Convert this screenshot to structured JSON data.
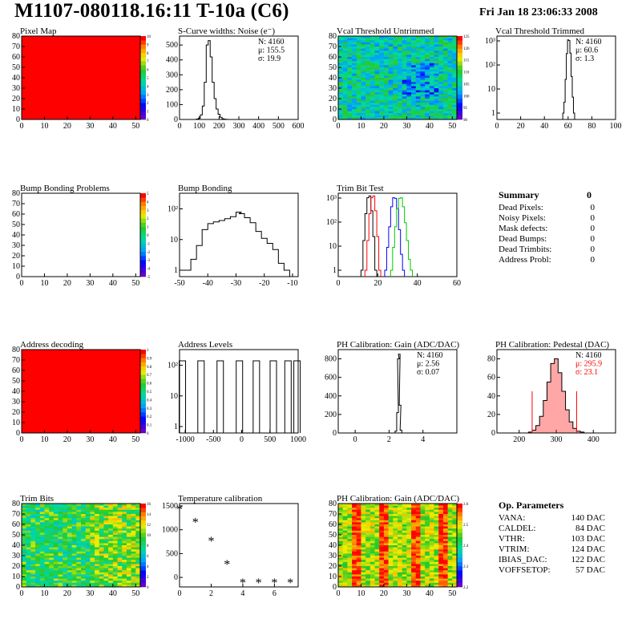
{
  "header": {
    "title": "M1107-080118.16:11 T-10a (C6)",
    "date": "Fri Jan 18 23:06:33 2008"
  },
  "colors": {
    "red": "#ff0000",
    "green": "#00cc00",
    "blue": "#0000ff",
    "pedestal_fill": "#ff0000"
  },
  "chart_data": [
    {
      "id": "pixel_map",
      "type": "heatmap",
      "title": "Pixel Map",
      "xlim": [
        0,
        52
      ],
      "ylim": [
        0,
        80
      ],
      "xticks": [
        0,
        10,
        20,
        30,
        40,
        50
      ],
      "yticks": [
        0,
        10,
        20,
        30,
        40,
        50,
        60,
        70,
        80
      ],
      "fill": "uniform-red",
      "colorbar_ticks": [
        "0",
        "1",
        "2",
        "3",
        "4",
        "5",
        "6",
        "7",
        "8",
        "9",
        "10"
      ]
    },
    {
      "id": "scurve",
      "type": "histogram",
      "title": "S-Curve widths: Noise (e⁻)",
      "xlim": [
        0,
        600
      ],
      "ylim": [
        0,
        560
      ],
      "xticks": [
        0,
        100,
        200,
        300,
        400,
        500,
        600
      ],
      "yticks": [
        0,
        100,
        200,
        300,
        400,
        500
      ],
      "stats": [
        "N: 4160",
        "μ: 155.5",
        "σ: 19.9"
      ],
      "x": [
        80,
        90,
        100,
        110,
        120,
        130,
        140,
        150,
        160,
        170,
        180,
        190,
        200,
        210,
        220,
        230,
        240,
        250
      ],
      "y": [
        0,
        3,
        8,
        30,
        90,
        250,
        500,
        530,
        420,
        250,
        140,
        70,
        35,
        15,
        5,
        2,
        1,
        0
      ]
    },
    {
      "id": "vcal_untrimmed",
      "type": "heatmap",
      "title": "Vcal Threshold Untrimmed",
      "xlim": [
        0,
        52
      ],
      "ylim": [
        0,
        80
      ],
      "xticks": [
        0,
        10,
        20,
        30,
        40,
        50
      ],
      "yticks": [
        0,
        10,
        20,
        30,
        40,
        50,
        60,
        70,
        80
      ],
      "colorbar_ticks": [
        "90",
        "95",
        "100",
        "105",
        "110",
        "115",
        "120",
        "125"
      ],
      "fill": "noise-green-cyan"
    },
    {
      "id": "vcal_trimmed",
      "type": "histogram",
      "title": "Vcal Threshold Trimmed",
      "log_y": true,
      "xlim": [
        0,
        100
      ],
      "xticks": [
        0,
        20,
        40,
        60,
        80,
        100
      ],
      "yticks_labels": [
        "1",
        "10",
        "10²",
        "10³"
      ],
      "stats": [
        "N: 4160",
        "μ: 60.6",
        "σ: 1.3"
      ],
      "x": [
        56,
        57,
        58,
        59,
        60,
        61,
        62,
        63,
        64,
        65
      ],
      "y": [
        1,
        3,
        30,
        400,
        1600,
        1500,
        420,
        40,
        5,
        1
      ]
    },
    {
      "id": "bump_problems",
      "type": "heatmap",
      "title": "Bump Bonding Problems",
      "xlim": [
        0,
        52
      ],
      "ylim": [
        0,
        80
      ],
      "xticks": [
        0,
        10,
        20,
        30,
        40,
        50
      ],
      "yticks": [
        0,
        10,
        20,
        30,
        40,
        50,
        60,
        70,
        80
      ],
      "colorbar_ticks": [
        "-5",
        "-4",
        "-3",
        "-2",
        "-1",
        "0",
        "1",
        "2",
        "3",
        "4",
        "5"
      ],
      "fill": "empty"
    },
    {
      "id": "bump_bonding",
      "type": "histogram",
      "title": "Bump Bonding",
      "log_y": true,
      "xlim": [
        -50,
        -8
      ],
      "xticks": [
        -50,
        -40,
        -30,
        -20,
        -10
      ],
      "yticks_labels": [
        "1",
        "10",
        "10²"
      ],
      "x": [
        -49,
        -47,
        -45,
        -43,
        -41,
        -39,
        -37,
        -35,
        -33,
        -31,
        -29,
        -28,
        -26,
        -24,
        -22,
        -20,
        -18,
        -16,
        -14,
        -12
      ],
      "y": [
        1,
        1,
        3,
        12,
        60,
        110,
        130,
        150,
        180,
        220,
        350,
        300,
        200,
        120,
        50,
        25,
        15,
        8,
        2,
        1
      ]
    },
    {
      "id": "trim_bit_test",
      "type": "histogram",
      "title": "Trim Bit Test",
      "log_y": true,
      "xlim": [
        0,
        60
      ],
      "xticks": [
        0,
        20,
        40,
        60
      ],
      "yticks_labels": [
        "1",
        "10",
        "10²",
        "10³"
      ],
      "series": [
        {
          "color": "#000000",
          "x": [
            12,
            13,
            14,
            15,
            16,
            17,
            18,
            19
          ],
          "y": [
            1,
            20,
            300,
            1500,
            1800,
            400,
            30,
            1
          ]
        },
        {
          "color": "#ff0000",
          "x": [
            14,
            15,
            16,
            17,
            18,
            19,
            20,
            21
          ],
          "y": [
            1,
            20,
            300,
            1500,
            1800,
            400,
            30,
            1
          ]
        },
        {
          "color": "#0000ff",
          "x": [
            24,
            25,
            26,
            27,
            28,
            29,
            30,
            31,
            32,
            33
          ],
          "y": [
            1,
            10,
            80,
            600,
            1500,
            1400,
            500,
            60,
            5,
            1
          ]
        },
        {
          "color": "#00cc00",
          "x": [
            27,
            28,
            29,
            30,
            31,
            32,
            33,
            34,
            35,
            36,
            37
          ],
          "y": [
            1,
            10,
            80,
            500,
            1400,
            1500,
            600,
            120,
            20,
            3,
            1
          ]
        }
      ]
    },
    {
      "id": "address_decoding",
      "type": "heatmap",
      "title": "Address decoding",
      "xlim": [
        0,
        52
      ],
      "ylim": [
        0,
        80
      ],
      "xticks": [
        0,
        10,
        20,
        30,
        40,
        50
      ],
      "yticks": [
        0,
        10,
        20,
        30,
        40,
        50,
        60,
        70,
        80
      ],
      "colorbar_ticks": [
        "0",
        "0.1",
        "0.2",
        "0.3",
        "0.4",
        "0.5",
        "0.6",
        "0.7",
        "0.8",
        "0.9",
        "1"
      ],
      "fill": "uniform-red"
    },
    {
      "id": "address_levels",
      "type": "histogram",
      "title": "Address Levels",
      "log_y": true,
      "xlim": [
        -1100,
        1000
      ],
      "xticks": [
        -1000,
        -500,
        0,
        500,
        1000
      ],
      "yticks_labels": [
        "1",
        "10",
        "10²"
      ],
      "peaks": [
        -1050,
        -720,
        -380,
        -40,
        260,
        560,
        820,
        980
      ]
    },
    {
      "id": "ph_gain",
      "type": "histogram",
      "title": "PH Calibration: Gain (ADC/DAC)",
      "xlim": [
        -1,
        6
      ],
      "ylim": [
        0,
        900
      ],
      "xticks": [
        0,
        2,
        4
      ],
      "yticks": [
        0,
        200,
        400,
        600,
        800
      ],
      "stats": [
        "N: 4160",
        "μ: 2.56",
        "σ: 0.07"
      ],
      "x": [
        2.3,
        2.4,
        2.5,
        2.55,
        2.6,
        2.65,
        2.7,
        2.8
      ],
      "y": [
        0,
        20,
        220,
        800,
        850,
        300,
        30,
        0
      ]
    },
    {
      "id": "ph_pedestal",
      "type": "histogram",
      "title": "PH Calibration: Pedestal (DAC)",
      "xlim": [
        140,
        460
      ],
      "ylim": [
        0,
        90
      ],
      "xticks": [
        200,
        300,
        400
      ],
      "yticks": [
        0,
        20,
        40,
        60,
        80
      ],
      "stats": [
        "N: 4160",
        "μ: 295.9",
        "σ: 23.1"
      ],
      "x": [
        230,
        240,
        250,
        260,
        270,
        280,
        290,
        300,
        310,
        320,
        330,
        340,
        350,
        360,
        370
      ],
      "y": [
        1,
        3,
        8,
        18,
        35,
        55,
        75,
        80,
        65,
        45,
        25,
        12,
        5,
        2,
        1
      ]
    },
    {
      "id": "trim_bits",
      "type": "heatmap",
      "title": "Trim Bits",
      "xlim": [
        0,
        52
      ],
      "ylim": [
        0,
        80
      ],
      "xticks": [
        0,
        10,
        20,
        30,
        40,
        50
      ],
      "yticks": [
        0,
        10,
        20,
        30,
        40,
        50,
        60,
        70,
        80
      ],
      "colorbar_ticks": [
        "0",
        "2",
        "4",
        "6",
        "8",
        "10",
        "12",
        "14",
        "16"
      ],
      "fill": "noise-green-yellow"
    },
    {
      "id": "temperature",
      "type": "scatter",
      "title": "Temperature calibration",
      "xlim": [
        0,
        7.5
      ],
      "ylim": [
        -200,
        1550
      ],
      "xticks": [
        0,
        2,
        4,
        6
      ],
      "yticks": [
        0,
        500,
        1000,
        1500
      ],
      "x": [
        0,
        1,
        2,
        3,
        4,
        5,
        6,
        7
      ],
      "y": [
        1440,
        1170,
        780,
        290,
        -100,
        -100,
        -100,
        -100
      ]
    },
    {
      "id": "ph_gain_map",
      "type": "heatmap",
      "title": "PH Calibration: Gain (ADC/DAC)",
      "xlim": [
        0,
        52
      ],
      "ylim": [
        0,
        80
      ],
      "xticks": [
        0,
        10,
        20,
        30,
        40,
        50
      ],
      "yticks": [
        0,
        10,
        20,
        30,
        40,
        50,
        60,
        70,
        80
      ],
      "colorbar_ticks": [
        "2.2",
        "2.3",
        "2.4",
        "2.5",
        "2.6"
      ],
      "fill": "noise-red-yellow-columns"
    }
  ],
  "summary": {
    "title": "Summary",
    "total": "0",
    "rows": [
      {
        "label": "Dead Pixels:",
        "value": "0"
      },
      {
        "label": "Noisy Pixels:",
        "value": "0"
      },
      {
        "label": "Mask defects:",
        "value": "0"
      },
      {
        "label": "Dead Bumps:",
        "value": "0"
      },
      {
        "label": "Dead Trimbits:",
        "value": "0"
      },
      {
        "label": "Address Probl:",
        "value": "0"
      }
    ]
  },
  "op_params": {
    "title": "Op. Parameters",
    "rows": [
      {
        "label": "VANA:",
        "value": "140 DAC"
      },
      {
        "label": "CALDEL:",
        "value": "84 DAC"
      },
      {
        "label": "VTHR:",
        "value": "103 DAC"
      },
      {
        "label": "VTRIM:",
        "value": "124 DAC"
      },
      {
        "label": "IBIAS_DAC:",
        "value": "122 DAC"
      },
      {
        "label": "VOFFSETOP:",
        "value": "57 DAC"
      }
    ]
  }
}
